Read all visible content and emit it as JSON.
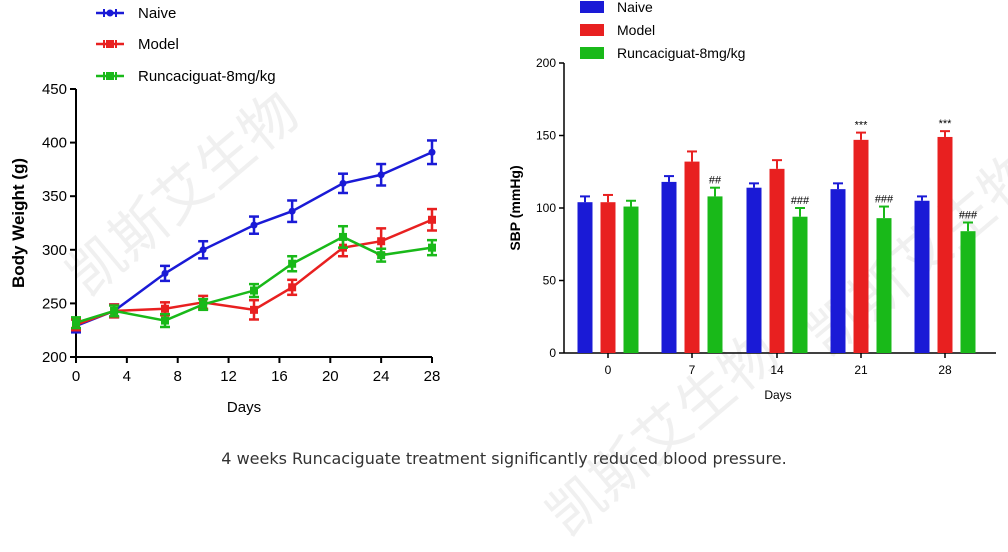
{
  "caption": "4 weeks Runcaciguate treatment significantly reduced blood pressure.",
  "watermark": "凯斯艾生物",
  "colors": {
    "naive": "#1a1ad6",
    "model": "#e82020",
    "runca": "#19b919",
    "axis": "#000000"
  },
  "chart_data": [
    {
      "type": "line",
      "xlabel": "Days",
      "ylabel": "Body Weight (g)",
      "xlim": [
        0,
        28
      ],
      "ylim": [
        200,
        450
      ],
      "xticks": [
        0,
        4,
        8,
        12,
        16,
        20,
        24,
        28
      ],
      "yticks": [
        200,
        250,
        300,
        350,
        400,
        450
      ],
      "grid": false,
      "legend_position": "top-left",
      "x": [
        0,
        3,
        7,
        10,
        14,
        17,
        21,
        24,
        28
      ],
      "series": [
        {
          "name": "Naive",
          "color": "#1a1ad6",
          "marker": "circle",
          "values": [
            229,
            243,
            278,
            300,
            323,
            336,
            362,
            370,
            391
          ],
          "error": [
            6,
            6,
            7,
            8,
            8,
            10,
            9,
            10,
            11
          ]
        },
        {
          "name": "Model",
          "color": "#e82020",
          "marker": "square",
          "values": [
            230,
            243,
            245,
            251,
            244,
            265,
            302,
            308,
            328
          ],
          "error": [
            5,
            6,
            6,
            6,
            9,
            7,
            8,
            12,
            10
          ]
        },
        {
          "name": "Runcaciguat-8mg/kg",
          "color": "#19b919",
          "marker": "square",
          "values": [
            232,
            243,
            234,
            249,
            262,
            287,
            312,
            295,
            302
          ],
          "error": [
            5,
            5,
            6,
            5,
            6,
            7,
            10,
            6,
            7
          ]
        }
      ]
    },
    {
      "type": "bar",
      "xlabel": "Days",
      "ylabel": "SBP (mmHg)",
      "ylim": [
        0,
        200
      ],
      "yticks": [
        0,
        50,
        100,
        150,
        200
      ],
      "categories": [
        "0",
        "7",
        "14",
        "21",
        "28"
      ],
      "grid": false,
      "legend_position": "top",
      "series": [
        {
          "name": "Naive",
          "color": "#1a1ad6",
          "values": [
            104,
            118,
            114,
            113,
            105
          ],
          "error": [
            4,
            4,
            3,
            4,
            3
          ],
          "annotations": [
            "",
            "",
            "",
            "",
            ""
          ]
        },
        {
          "name": "Model",
          "color": "#e82020",
          "values": [
            104,
            132,
            127,
            147,
            149
          ],
          "error": [
            5,
            7,
            6,
            5,
            4
          ],
          "annotations": [
            "",
            "",
            "",
            "***",
            "***"
          ]
        },
        {
          "name": "Runcaciguat-8mg/kg",
          "color": "#19b919",
          "values": [
            101,
            108,
            94,
            93,
            84
          ],
          "error": [
            4,
            6,
            6,
            8,
            6
          ],
          "annotations": [
            "",
            "##",
            "###",
            "###",
            "###"
          ]
        }
      ]
    }
  ]
}
